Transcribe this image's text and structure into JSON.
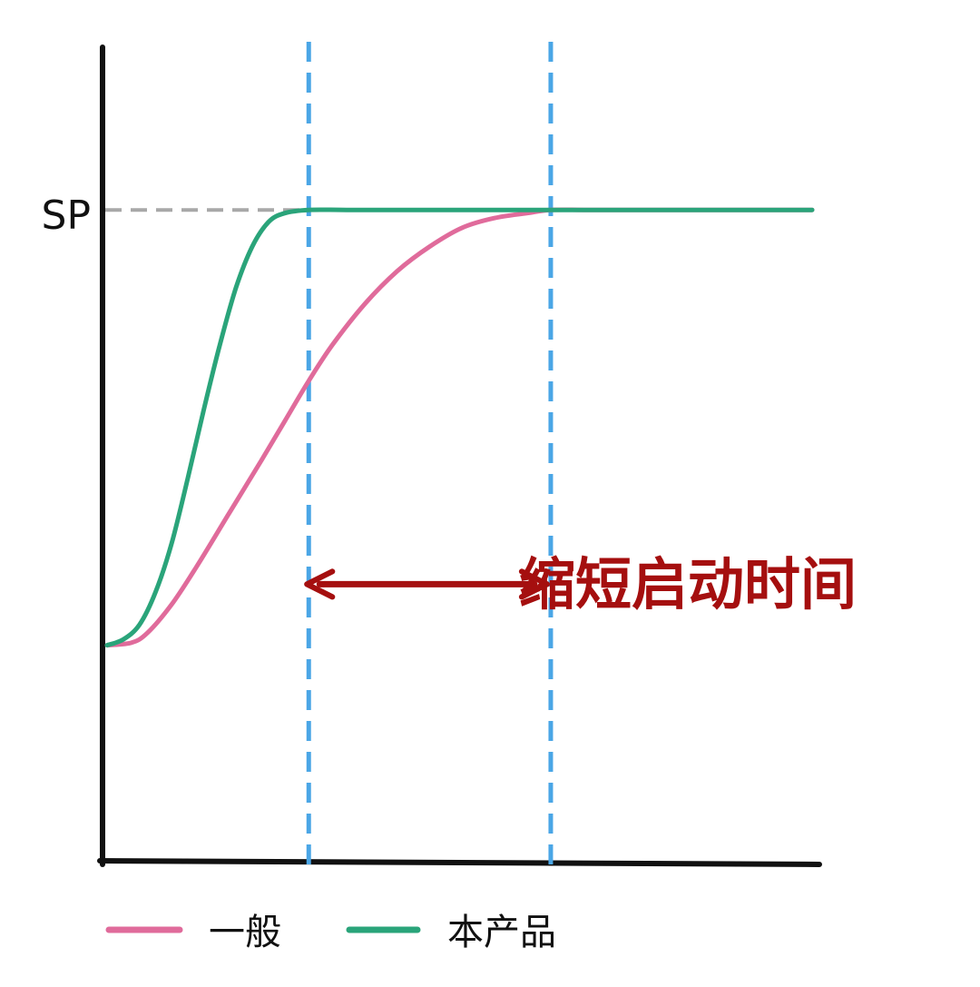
{
  "chart_data": {
    "type": "line",
    "title": "",
    "xlabel": "",
    "ylabel": "",
    "xlim": [
      0,
      100
    ],
    "ylim": [
      0,
      100
    ],
    "grid": false,
    "legend_position": "bottom-left",
    "setpoint": {
      "label": "SP",
      "value": 80,
      "color": "#a8a8a8"
    },
    "markers": [
      {
        "x": 25,
        "color": "#4aa6e6"
      },
      {
        "x": 55,
        "color": "#4aa6e6"
      }
    ],
    "annotation": {
      "text": "缩短启动时间",
      "x_from": 25,
      "x_to": 55,
      "y": 34,
      "color": "#a50f0f"
    },
    "series": [
      {
        "name": "一般",
        "color": "#e06b9b",
        "x": [
          0,
          3,
          5,
          8,
          11,
          15,
          19,
          22,
          25,
          28,
          32,
          36,
          40,
          44,
          48,
          52,
          55,
          60,
          70,
          80,
          100
        ],
        "y": [
          26.5,
          26.8,
          28,
          31.5,
          36,
          42.5,
          49,
          54,
          59,
          63.5,
          68.5,
          72.5,
          75.5,
          77.8,
          79,
          79.6,
          80,
          80,
          80,
          80,
          80
        ]
      },
      {
        "name": "本产品",
        "color": "#2aa47a",
        "x": [
          0,
          2,
          4,
          6,
          8,
          10,
          12,
          14,
          16,
          18,
          20,
          22,
          25,
          30,
          40,
          55,
          70,
          100
        ],
        "y": [
          26.5,
          27.2,
          29,
          33,
          39,
          47,
          55.5,
          63.5,
          70.5,
          75.5,
          78.5,
          79.6,
          80,
          80,
          80,
          80,
          80,
          80
        ]
      }
    ]
  }
}
